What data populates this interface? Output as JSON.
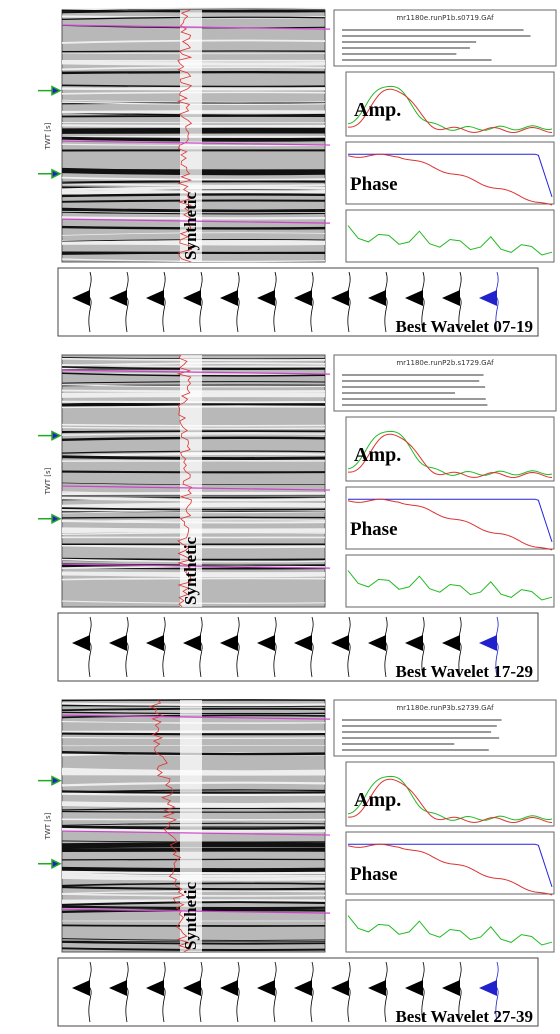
{
  "panels": [
    {
      "header": "mr1180e.runP1b.s0719.GAf",
      "axis_label": "TWT [s]",
      "amp_label": "Amp.",
      "phase_label": "Phase",
      "synthetic_label": "Synthetic",
      "wavelet_label": "Best Wavelet 07-19"
    },
    {
      "header": "mr1180e.runP2b.s1729.GAf",
      "axis_label": "TWT [s]",
      "amp_label": "Amp.",
      "phase_label": "Phase",
      "synthetic_label": "Synthetic",
      "wavelet_label": "Best Wavelet 17-29"
    },
    {
      "header": "mr1180e.runP3b.s2739.GAf",
      "axis_label": "TWT [s]",
      "amp_label": "Amp.",
      "phase_label": "Phase",
      "synthetic_label": "Synthetic",
      "wavelet_label": "Best Wavelet 27-39"
    }
  ]
}
